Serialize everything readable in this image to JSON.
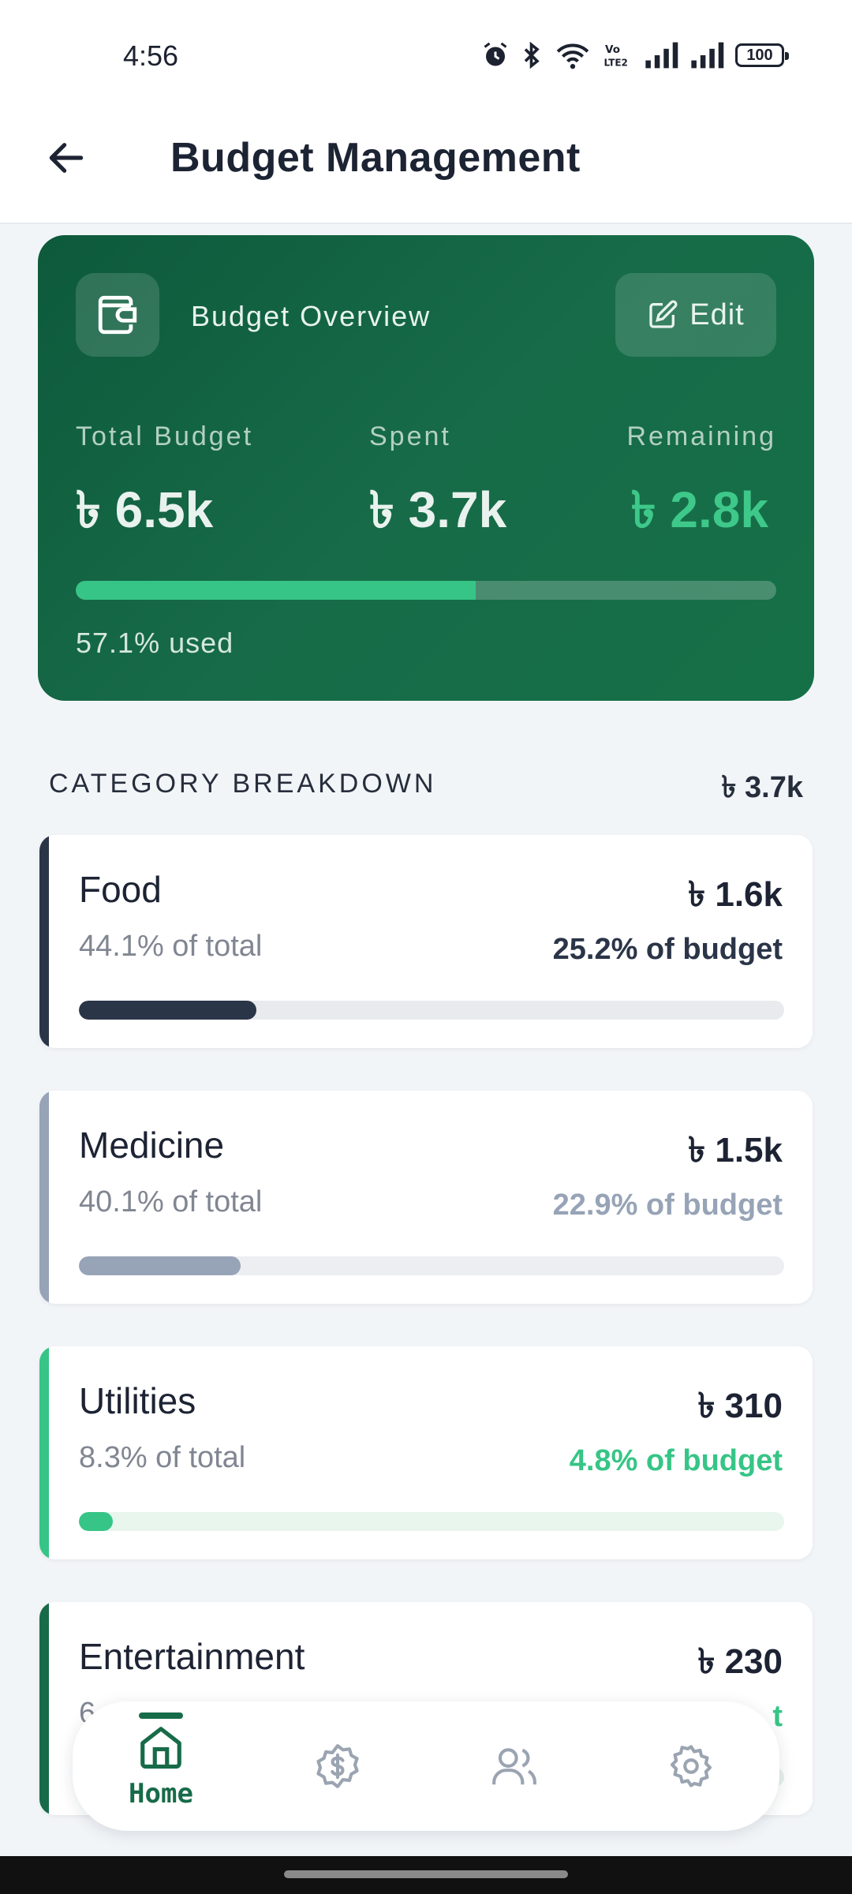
{
  "status_bar": {
    "time": "4:56",
    "battery": "100"
  },
  "header": {
    "title": "Budget Management"
  },
  "overview": {
    "title": "Budget Overview",
    "edit_label": "Edit",
    "stats": [
      {
        "label": "Total Budget",
        "value": "৳ 6.5k"
      },
      {
        "label": "Spent",
        "value": "৳ 3.7k"
      },
      {
        "label": "Remaining",
        "value": "৳ 2.8k"
      }
    ],
    "used_fraction": 0.571,
    "used_text": "57.1% used"
  },
  "breakdown": {
    "heading": "CATEGORY BREAKDOWN",
    "total": "৳ 3.7k",
    "categories": [
      {
        "name": "Food",
        "amount": "৳ 1.6k",
        "pct_total": "44.1% of total",
        "pct_budget": "25.2% of budget",
        "fill": 0.252,
        "accent": "#2b3548",
        "track": "#e8eaee",
        "budget_color": "#2b3548"
      },
      {
        "name": "Medicine",
        "amount": "৳ 1.5k",
        "pct_total": "40.1% of total",
        "pct_budget": "22.9% of budget",
        "fill": 0.229,
        "accent": "#97a3b6",
        "track": "#eceef2",
        "budget_color": "#97a3b6"
      },
      {
        "name": "Utilities",
        "amount": "৳ 310",
        "pct_total": "8.3% of total",
        "pct_budget": "4.8% of budget",
        "fill": 0.048,
        "accent": "#36c586",
        "track": "#e8f6ee",
        "budget_color": "#36c586"
      },
      {
        "name": "Entertainment",
        "amount": "৳ 230",
        "pct_total": "6",
        "pct_budget": "t",
        "fill": 0.035,
        "accent": "#176b48",
        "track": "#e8f1ec",
        "budget_color": "#36c586"
      }
    ]
  },
  "bottom_nav": {
    "items": [
      {
        "label": "Home",
        "icon": "home-icon",
        "active": true
      },
      {
        "label": "",
        "icon": "dollar-icon",
        "active": false
      },
      {
        "label": "",
        "icon": "users-icon",
        "active": false
      },
      {
        "label": "",
        "icon": "gear-icon",
        "active": false
      }
    ]
  }
}
